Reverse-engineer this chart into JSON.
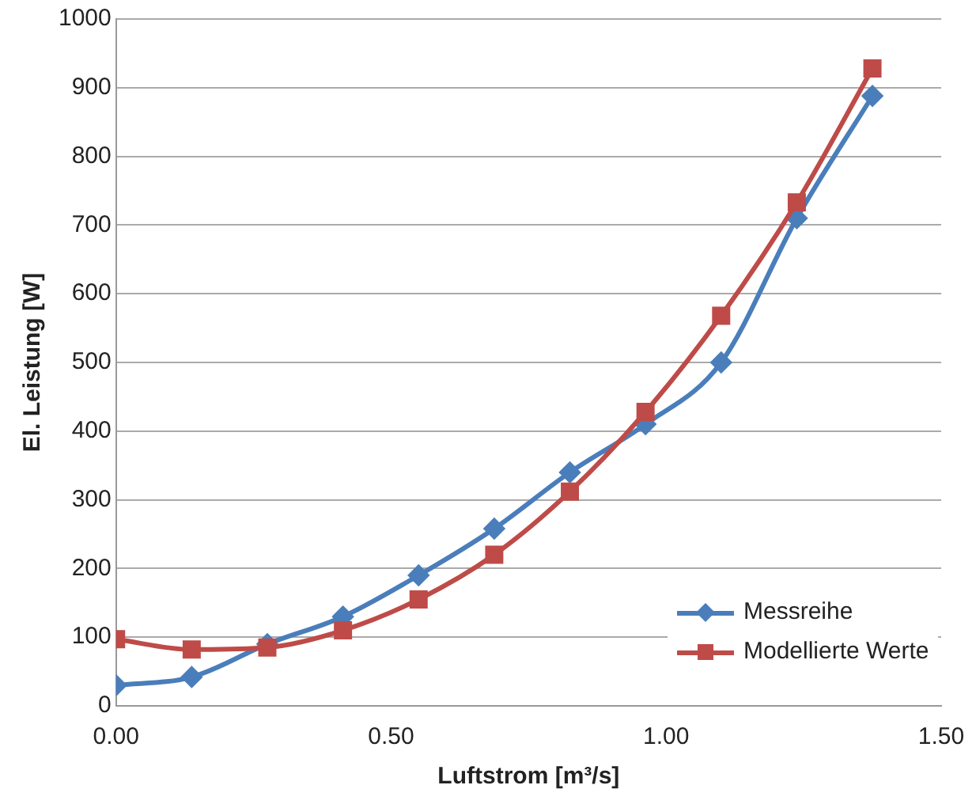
{
  "chart_data": {
    "type": "line",
    "xlabel": "Luftstrom [m³/s]",
    "ylabel": "El. Leistung [W]",
    "xlim": [
      0,
      1.5
    ],
    "xticks": [
      {
        "value": 0,
        "label": "0.00"
      },
      {
        "value": 0.5,
        "label": "0.50"
      },
      {
        "value": 1,
        "label": "1.00"
      },
      {
        "value": 1.5,
        "label": "1.50"
      }
    ],
    "ylim": [
      0,
      1000
    ],
    "yticks": [
      0,
      100,
      200,
      300,
      400,
      500,
      600,
      700,
      800,
      900,
      1000
    ],
    "grid": "y",
    "legend": "bottom right",
    "line_style": "solid",
    "series": [
      {
        "name": "Messreihe",
        "color": "#4a7ebb",
        "marker": "diamond",
        "x": [
          0,
          0.1375,
          0.275,
          0.4125,
          0.55,
          0.6875,
          0.825,
          0.9625,
          1.1,
          1.2375,
          1.375
        ],
        "values": [
          30,
          42,
          90,
          130,
          190,
          258,
          340,
          410,
          500,
          710,
          888
        ]
      },
      {
        "name": "Modellierte Werte",
        "color": "#be4b48",
        "marker": "square",
        "x": [
          0,
          0.1375,
          0.275,
          0.4125,
          0.55,
          0.6875,
          0.825,
          0.9625,
          1.1,
          1.2375,
          1.375
        ],
        "values": [
          97,
          82,
          85,
          110,
          155,
          220,
          312,
          428,
          568,
          733,
          928
        ]
      }
    ]
  }
}
